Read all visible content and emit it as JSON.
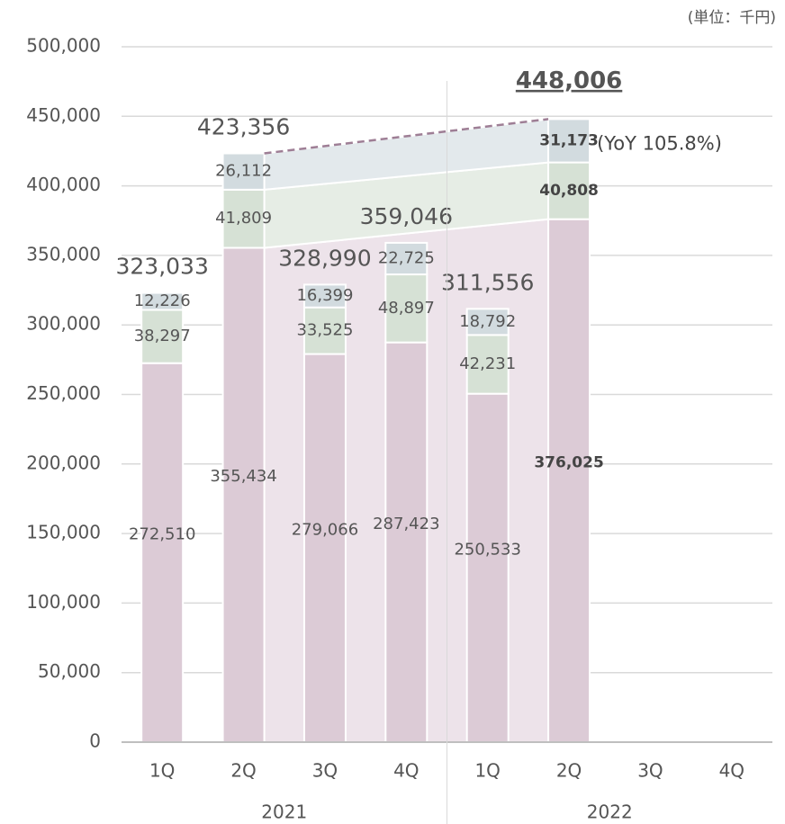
{
  "chart_data": {
    "type": "bar",
    "stacked": true,
    "unit_note": "(単位：千円)",
    "yoy_note": "(YoY 105.8%)",
    "categories": [
      "1Q",
      "2Q",
      "3Q",
      "4Q",
      "1Q",
      "2Q",
      "3Q",
      "4Q"
    ],
    "groups": [
      {
        "label": "2021",
        "start": 0,
        "end": 3
      },
      {
        "label": "2022",
        "start": 4,
        "end": 7
      }
    ],
    "series": [
      {
        "color": "#dccbd6",
        "values": [
          272510,
          355434,
          279066,
          287423,
          250533,
          376025,
          null,
          null
        ]
      },
      {
        "color": "#d6e1d5",
        "values": [
          38297,
          41809,
          33525,
          48897,
          42231,
          40808,
          null,
          null
        ]
      },
      {
        "color": "#d2dbdf",
        "values": [
          12226,
          26112,
          16399,
          22725,
          18792,
          31173,
          null,
          null
        ]
      }
    ],
    "totals": [
      323033,
      423356,
      328990,
      359046,
      311556,
      448006,
      null,
      null
    ],
    "ylim": [
      0,
      500000
    ],
    "yticks": [
      {
        "value": 0,
        "label": "0"
      },
      {
        "value": 50000,
        "label": "50,000"
      },
      {
        "value": 100000,
        "label": "100,000"
      },
      {
        "value": 150000,
        "label": "150,000"
      },
      {
        "value": 200000,
        "label": "200,000"
      },
      {
        "value": 250000,
        "label": "250,000"
      },
      {
        "value": 300000,
        "label": "300,000"
      },
      {
        "value": 350000,
        "label": "350,000"
      },
      {
        "value": 400000,
        "label": "400,000"
      },
      {
        "value": 450000,
        "label": "450,000"
      },
      {
        "value": 500000,
        "label": "500,000"
      }
    ],
    "grid": true
  }
}
